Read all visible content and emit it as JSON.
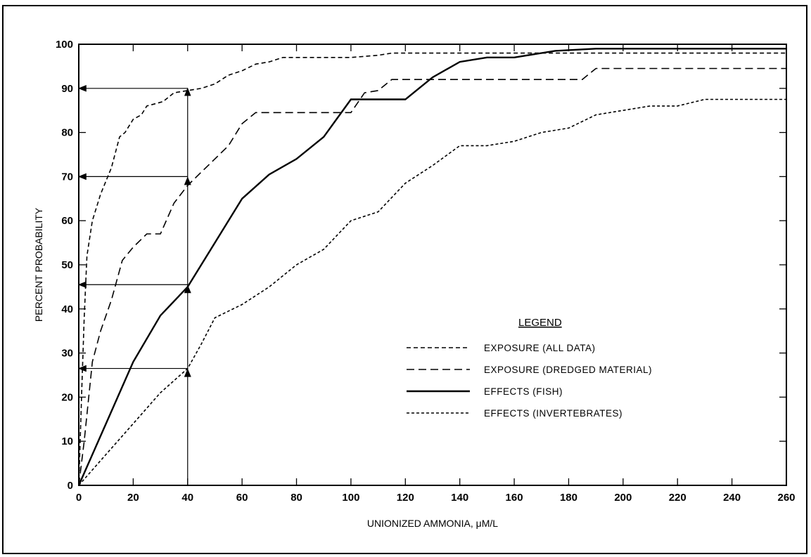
{
  "chart_data": {
    "type": "line",
    "title": "",
    "xlabel": "UNIONIZED AMMONIA, μM/L",
    "ylabel": "PERCENT PROBABILITY",
    "xlim": [
      0,
      260
    ],
    "ylim": [
      0,
      100
    ],
    "x_ticks": [
      0,
      20,
      40,
      60,
      80,
      100,
      120,
      140,
      160,
      180,
      200,
      220,
      240,
      260
    ],
    "y_ticks": [
      0,
      10,
      20,
      30,
      40,
      50,
      60,
      70,
      80,
      90,
      100
    ],
    "grid": false,
    "legend": {
      "title": "LEGEND",
      "position": "lower-right"
    },
    "series": [
      {
        "name": "EXPOSURE (ALL DATA)",
        "style": "short-dash",
        "points": [
          [
            0,
            0
          ],
          [
            1,
            20
          ],
          [
            2,
            38
          ],
          [
            3,
            52
          ],
          [
            5,
            60
          ],
          [
            8,
            66
          ],
          [
            12,
            72
          ],
          [
            15,
            79
          ],
          [
            17,
            80
          ],
          [
            20,
            83
          ],
          [
            23,
            84
          ],
          [
            25,
            86
          ],
          [
            28,
            86.5
          ],
          [
            31,
            87
          ],
          [
            35,
            89
          ],
          [
            40,
            89.5
          ],
          [
            45,
            90
          ],
          [
            50,
            91
          ],
          [
            55,
            93
          ],
          [
            60,
            94
          ],
          [
            65,
            95.5
          ],
          [
            70,
            96
          ],
          [
            75,
            97
          ],
          [
            80,
            97
          ],
          [
            90,
            97
          ],
          [
            100,
            97
          ],
          [
            110,
            97.5
          ],
          [
            115,
            98
          ],
          [
            120,
            98
          ],
          [
            260,
            98
          ]
        ]
      },
      {
        "name": "EXPOSURE (DREDGED MATERIAL)",
        "style": "long-dash",
        "points": [
          [
            0,
            0
          ],
          [
            2,
            10
          ],
          [
            5,
            28
          ],
          [
            8,
            35
          ],
          [
            12,
            42
          ],
          [
            16,
            51
          ],
          [
            20,
            54
          ],
          [
            25,
            57
          ],
          [
            30,
            57
          ],
          [
            35,
            64
          ],
          [
            40,
            68
          ],
          [
            45,
            71
          ],
          [
            50,
            74
          ],
          [
            55,
            77
          ],
          [
            60,
            82
          ],
          [
            65,
            84.5
          ],
          [
            70,
            84.5
          ],
          [
            80,
            84.5
          ],
          [
            100,
            84.5
          ],
          [
            105,
            89
          ],
          [
            110,
            89.5
          ],
          [
            115,
            92
          ],
          [
            120,
            92
          ],
          [
            185,
            92
          ],
          [
            190,
            94.5
          ],
          [
            260,
            94.5
          ]
        ]
      },
      {
        "name": "EFFECTS (FISH)",
        "style": "solid",
        "points": [
          [
            0,
            0
          ],
          [
            10,
            14
          ],
          [
            20,
            28
          ],
          [
            30,
            38.5
          ],
          [
            40,
            45
          ],
          [
            50,
            55
          ],
          [
            60,
            65
          ],
          [
            70,
            70.5
          ],
          [
            80,
            74
          ],
          [
            90,
            79
          ],
          [
            100,
            87.5
          ],
          [
            110,
            87.5
          ],
          [
            120,
            87.5
          ],
          [
            130,
            92.5
          ],
          [
            140,
            96
          ],
          [
            150,
            97
          ],
          [
            160,
            97
          ],
          [
            175,
            98.5
          ],
          [
            190,
            99
          ],
          [
            260,
            99
          ]
        ]
      },
      {
        "name": "EFFECTS (INVERTEBRATES)",
        "style": "dotted-dash",
        "points": [
          [
            0,
            0
          ],
          [
            10,
            7
          ],
          [
            20,
            14
          ],
          [
            30,
            21
          ],
          [
            40,
            26.5
          ],
          [
            45,
            32
          ],
          [
            50,
            38
          ],
          [
            60,
            41
          ],
          [
            70,
            45
          ],
          [
            80,
            50
          ],
          [
            90,
            53.5
          ],
          [
            100,
            60
          ],
          [
            110,
            62
          ],
          [
            120,
            68.5
          ],
          [
            130,
            72.5
          ],
          [
            140,
            77
          ],
          [
            150,
            77
          ],
          [
            160,
            78
          ],
          [
            170,
            80
          ],
          [
            180,
            81
          ],
          [
            190,
            84
          ],
          [
            200,
            85
          ],
          [
            210,
            86
          ],
          [
            220,
            86
          ],
          [
            230,
            87.5
          ],
          [
            240,
            87.5
          ],
          [
            260,
            87.5
          ]
        ]
      }
    ],
    "annotations": [
      {
        "type": "vertical-arrow",
        "x": 40,
        "from_y": 0,
        "to_y": 90
      },
      {
        "type": "horizontal-arrow",
        "y": 90,
        "from_x": 40,
        "to_x": 0
      },
      {
        "type": "horizontal-arrow",
        "y": 70,
        "from_x": 40,
        "to_x": 0
      },
      {
        "type": "horizontal-arrow",
        "y": 45.5,
        "from_x": 40,
        "to_x": 0
      },
      {
        "type": "horizontal-arrow",
        "y": 26.5,
        "from_x": 40,
        "to_x": 0
      }
    ]
  }
}
